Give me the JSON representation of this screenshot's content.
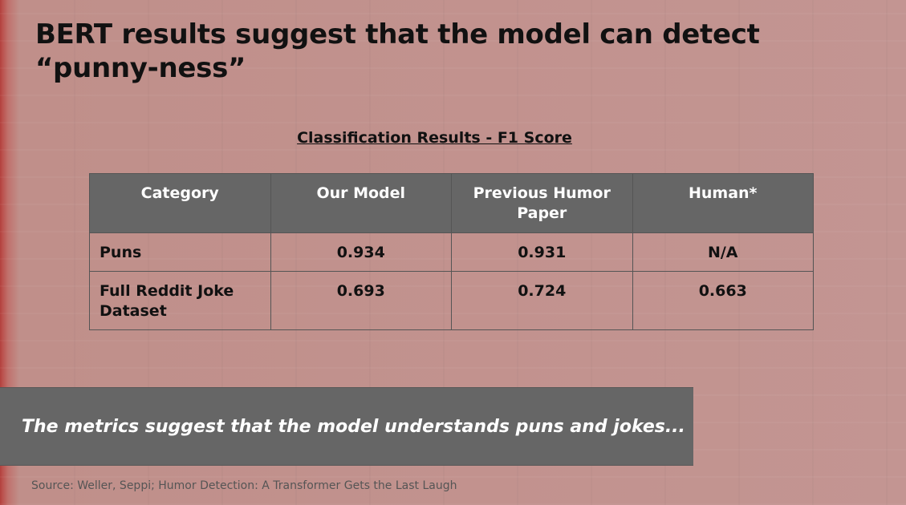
{
  "slide": {
    "title": "BERT results suggest that the model can detect “punny-ness”",
    "table_caption": "Classification Results - F1 Score",
    "table": {
      "headers": [
        "Category",
        "Our Model",
        "Previous Humor Paper",
        "Human*"
      ],
      "rows": [
        [
          "Puns",
          "0.934",
          "0.931",
          "N/A"
        ],
        [
          "Full Reddit Joke Dataset",
          "0.693",
          "0.724",
          "0.663"
        ]
      ]
    },
    "callout": "The metrics suggest that the model understands puns and jokes...",
    "source": "Source: Weller, Seppi; Humor Detection: A Transformer Gets the Last Laugh"
  },
  "colors": {
    "background": "#c08f8a",
    "header_fill": "#666666",
    "callout_fill": "#666666",
    "text_dark": "#111111",
    "text_light": "#ffffff"
  }
}
